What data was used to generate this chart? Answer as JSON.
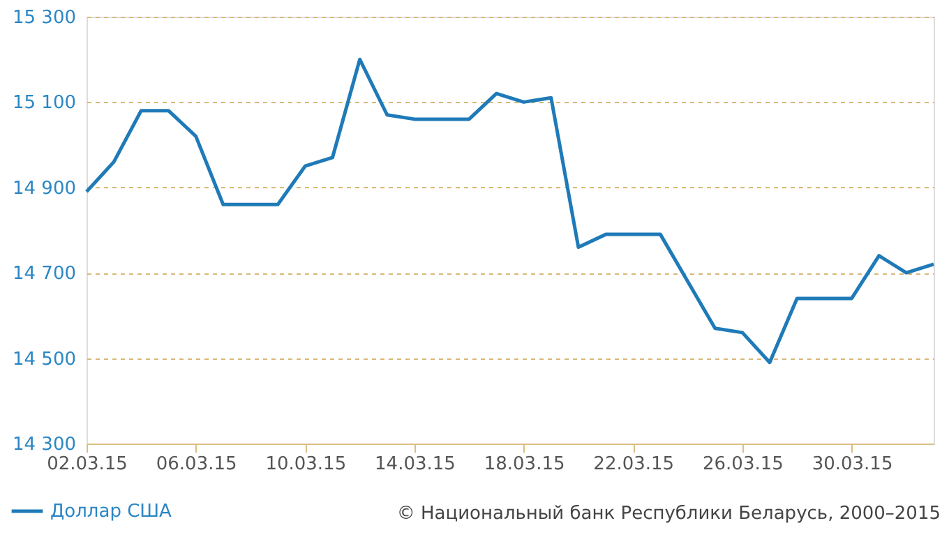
{
  "chart_data": {
    "type": "line",
    "x": [
      "2015-03-02",
      "2015-03-03",
      "2015-03-04",
      "2015-03-05",
      "2015-03-06",
      "2015-03-07",
      "2015-03-08",
      "2015-03-09",
      "2015-03-10",
      "2015-03-11",
      "2015-03-12",
      "2015-03-13",
      "2015-03-14",
      "2015-03-15",
      "2015-03-16",
      "2015-03-17",
      "2015-03-18",
      "2015-03-19",
      "2015-03-20",
      "2015-03-21",
      "2015-03-22",
      "2015-03-23",
      "2015-03-24",
      "2015-03-25",
      "2015-03-26",
      "2015-03-27",
      "2015-03-28",
      "2015-03-29",
      "2015-03-30",
      "2015-03-31",
      "2015-04-01",
      "2015-04-02"
    ],
    "series": [
      {
        "name": "Доллар США",
        "color": "#1f7ab8",
        "values": [
          14890,
          14960,
          15080,
          15080,
          15020,
          14860,
          14860,
          14860,
          14950,
          14970,
          15200,
          15070,
          15060,
          15060,
          15060,
          15120,
          15100,
          15110,
          14760,
          14790,
          14790,
          14790,
          14680,
          14570,
          14560,
          14490,
          14640,
          14640,
          14640,
          14740,
          14700,
          14720
        ]
      }
    ],
    "xlim": [
      "2015-03-02",
      "2015-04-02"
    ],
    "xticks": [
      {
        "value": "2015-03-02",
        "label": "02.03.15"
      },
      {
        "value": "2015-03-06",
        "label": "06.03.15"
      },
      {
        "value": "2015-03-10",
        "label": "10.03.15"
      },
      {
        "value": "2015-03-14",
        "label": "14.03.15"
      },
      {
        "value": "2015-03-18",
        "label": "18.03.15"
      },
      {
        "value": "2015-03-22",
        "label": "22.03.15"
      },
      {
        "value": "2015-03-26",
        "label": "26.03.15"
      },
      {
        "value": "2015-03-30",
        "label": "30.03.15"
      }
    ],
    "ylim": [
      14300,
      15300
    ],
    "yticks": [
      {
        "value": 14300,
        "label": "14 300"
      },
      {
        "value": 14500,
        "label": "14 500"
      },
      {
        "value": 14700,
        "label": "14 700"
      },
      {
        "value": 14900,
        "label": "14 900"
      },
      {
        "value": 15100,
        "label": "15 100"
      },
      {
        "value": 15300,
        "label": "15 300"
      }
    ],
    "grid": "y",
    "legend": "bottom left",
    "marker": "none",
    "line_style": "solid",
    "annotations": [
      "© Национальный банк Республики Беларусь, 2000–2015"
    ]
  }
}
